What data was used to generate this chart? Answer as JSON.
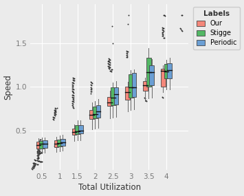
{
  "xlabel": "Total Utilization",
  "ylabel": "Speed",
  "xlim": [
    0.18,
    4.62
  ],
  "ylim": [
    0.05,
    1.95
  ],
  "yticks": [
    0.5,
    1.0,
    1.5
  ],
  "xticks": [
    0.5,
    1.0,
    1.5,
    2.0,
    2.5,
    3.0,
    3.5,
    4.0
  ],
  "background_color": "#EBEBEB",
  "grid_color": "#FFFFFF",
  "colors": {
    "Our": "#F4877A",
    "Stigge": "#53B865",
    "Periodic": "#6B9FD4"
  },
  "legend_title": "Labels",
  "legend_labels": [
    "Our",
    "Stigge",
    "Periodic"
  ],
  "groups": [
    0.5,
    1.0,
    1.5,
    2.0,
    2.5,
    3.0,
    3.5,
    4.0
  ],
  "box_width": 0.13,
  "offsets": [
    -0.09,
    0.0,
    0.09
  ],
  "boxes": {
    "Our": {
      "0.5": {
        "q1": 0.295,
        "med": 0.34,
        "q3": 0.375,
        "whislo": 0.24,
        "whishi": 0.415
      },
      "1.0": {
        "q1": 0.31,
        "med": 0.355,
        "q3": 0.39,
        "whislo": 0.26,
        "whishi": 0.43
      },
      "1.5": {
        "q1": 0.455,
        "med": 0.485,
        "q3": 0.525,
        "whislo": 0.385,
        "whishi": 0.575
      },
      "2.0": {
        "q1": 0.635,
        "med": 0.68,
        "q3": 0.735,
        "whislo": 0.52,
        "whishi": 0.82
      },
      "2.5": {
        "q1": 0.78,
        "med": 0.825,
        "q3": 0.885,
        "whislo": 0.64,
        "whishi": 0.96
      },
      "3.0": {
        "q1": 0.855,
        "med": 0.94,
        "q3": 1.0,
        "whislo": 0.72,
        "whishi": 1.06
      },
      "3.5": {
        "q1": 0.955,
        "med": 1.02,
        "q3": 1.07,
        "whislo": 0.84,
        "whishi": 1.105
      },
      "4.0": {
        "q1": 1.0,
        "med": 1.185,
        "q3": 1.21,
        "whislo": 0.94,
        "whishi": 1.25
      }
    },
    "Stigge": {
      "0.5": {
        "q1": 0.3,
        "med": 0.348,
        "q3": 0.385,
        "whislo": 0.245,
        "whishi": 0.42
      },
      "1.0": {
        "q1": 0.32,
        "med": 0.362,
        "q3": 0.4,
        "whislo": 0.268,
        "whishi": 0.445
      },
      "1.5": {
        "q1": 0.46,
        "med": 0.492,
        "q3": 0.565,
        "whislo": 0.39,
        "whishi": 0.615
      },
      "2.0": {
        "q1": 0.64,
        "med": 0.69,
        "q3": 0.775,
        "whislo": 0.525,
        "whishi": 0.84
      },
      "2.5": {
        "q1": 0.79,
        "med": 0.875,
        "q3": 0.995,
        "whislo": 0.65,
        "whishi": 1.05
      },
      "3.0": {
        "q1": 0.88,
        "med": 0.998,
        "q3": 1.145,
        "whislo": 0.74,
        "whishi": 1.195
      },
      "3.5": {
        "q1": 1.005,
        "med": 1.165,
        "q3": 1.335,
        "whislo": 0.87,
        "whishi": 1.44
      },
      "4.0": {
        "q1": 1.095,
        "med": 1.175,
        "q3": 1.265,
        "whislo": 0.97,
        "whishi": 1.31
      }
    },
    "Periodic": {
      "0.5": {
        "q1": 0.305,
        "med": 0.352,
        "q3": 0.388,
        "whislo": 0.248,
        "whishi": 0.425
      },
      "1.0": {
        "q1": 0.325,
        "med": 0.368,
        "q3": 0.408,
        "whislo": 0.27,
        "whishi": 0.45
      },
      "1.5": {
        "q1": 0.468,
        "med": 0.5,
        "q3": 0.56,
        "whislo": 0.392,
        "whishi": 0.62
      },
      "2.0": {
        "q1": 0.648,
        "med": 0.718,
        "q3": 0.795,
        "whislo": 0.53,
        "whishi": 0.862
      },
      "2.5": {
        "q1": 0.798,
        "med": 0.918,
        "q3": 0.998,
        "whislo": 0.655,
        "whishi": 1.07
      },
      "3.0": {
        "q1": 0.885,
        "med": 0.998,
        "q3": 1.158,
        "whislo": 0.745,
        "whishi": 1.2
      },
      "3.5": {
        "q1": 1.018,
        "med": 1.168,
        "q3": 1.248,
        "whislo": 0.882,
        "whishi": 1.315
      },
      "4.0": {
        "q1": 1.098,
        "med": 1.195,
        "q3": 1.268,
        "whislo": 0.975,
        "whishi": 1.335
      }
    }
  },
  "fliers": {
    "0.5_scatter": [
      [
        0.42,
        0.385
      ],
      [
        0.44,
        0.395
      ],
      [
        0.46,
        0.4
      ],
      [
        0.42,
        0.355
      ],
      [
        0.44,
        0.36
      ],
      [
        0.36,
        0.31
      ],
      [
        0.38,
        0.315
      ],
      [
        0.4,
        0.32
      ],
      [
        0.42,
        0.318
      ],
      [
        0.44,
        0.312
      ],
      [
        0.36,
        0.295
      ],
      [
        0.38,
        0.298
      ],
      [
        0.4,
        0.3
      ],
      [
        0.42,
        0.302
      ],
      [
        0.44,
        0.296
      ],
      [
        0.38,
        0.28
      ],
      [
        0.4,
        0.282
      ],
      [
        0.42,
        0.278
      ],
      [
        0.36,
        0.265
      ],
      [
        0.38,
        0.268
      ],
      [
        0.4,
        0.27
      ],
      [
        0.42,
        0.266
      ],
      [
        0.44,
        0.262
      ],
      [
        0.36,
        0.25
      ],
      [
        0.38,
        0.252
      ],
      [
        0.4,
        0.255
      ],
      [
        0.42,
        0.248
      ],
      [
        0.44,
        0.245
      ],
      [
        0.46,
        0.248
      ],
      [
        0.48,
        0.252
      ],
      [
        0.5,
        0.255
      ],
      [
        0.38,
        0.235
      ],
      [
        0.4,
        0.238
      ],
      [
        0.42,
        0.232
      ],
      [
        0.36,
        0.22
      ],
      [
        0.38,
        0.215
      ],
      [
        0.4,
        0.218
      ],
      [
        0.38,
        0.2
      ],
      [
        0.4,
        0.198
      ],
      [
        0.36,
        0.185
      ],
      [
        0.38,
        0.182
      ],
      [
        0.4,
        0.188
      ],
      [
        0.3,
        0.168
      ],
      [
        0.32,
        0.165
      ],
      [
        0.34,
        0.162
      ],
      [
        0.36,
        0.16
      ],
      [
        0.38,
        0.155
      ],
      [
        0.4,
        0.158
      ],
      [
        0.42,
        0.152
      ],
      [
        0.44,
        0.148
      ],
      [
        0.46,
        0.145
      ],
      [
        0.48,
        0.148
      ],
      [
        0.5,
        0.145
      ],
      [
        0.25,
        0.132
      ],
      [
        0.27,
        0.13
      ],
      [
        0.29,
        0.128
      ],
      [
        0.32,
        0.125
      ],
      [
        0.34,
        0.122
      ],
      [
        0.36,
        0.12
      ],
      [
        0.38,
        0.118
      ],
      [
        0.28,
        0.115
      ],
      [
        0.3,
        0.112
      ],
      [
        0.32,
        0.11
      ],
      [
        0.26,
        0.098
      ],
      [
        0.28,
        0.095
      ],
      [
        0.3,
        0.092
      ],
      [
        0.24,
        0.082
      ],
      [
        0.26,
        0.079
      ],
      [
        0.28,
        0.076
      ],
      [
        0.22,
        0.068
      ],
      [
        0.24,
        0.065
      ]
    ],
    "1.0_scatter": [
      [
        0.88,
        0.76
      ],
      [
        0.9,
        0.755
      ],
      [
        0.92,
        0.758
      ],
      [
        0.86,
        0.74
      ],
      [
        0.88,
        0.735
      ],
      [
        0.9,
        0.732
      ],
      [
        0.86,
        0.715
      ],
      [
        0.88,
        0.718
      ],
      [
        0.9,
        0.712
      ],
      [
        0.86,
        0.698
      ],
      [
        0.88,
        0.695
      ],
      [
        0.9,
        0.692
      ],
      [
        0.86,
        0.678
      ],
      [
        0.88,
        0.675
      ],
      [
        0.82,
        0.655
      ],
      [
        0.84,
        0.65
      ],
      [
        0.86,
        0.648
      ],
      [
        0.82,
        0.635
      ],
      [
        0.84,
        0.628
      ],
      [
        0.9,
        0.378
      ],
      [
        0.92,
        0.372
      ],
      [
        0.94,
        0.368
      ],
      [
        0.88,
        0.352
      ],
      [
        0.9,
        0.348
      ],
      [
        0.86,
        0.328
      ],
      [
        0.88,
        0.322
      ]
    ],
    "1.5_scatter": [
      [
        1.38,
        1.108
      ],
      [
        1.4,
        1.102
      ],
      [
        1.42,
        1.098
      ],
      [
        1.38,
        1.082
      ],
      [
        1.4,
        1.075
      ],
      [
        1.42,
        1.072
      ],
      [
        1.36,
        1.052
      ],
      [
        1.38,
        1.048
      ],
      [
        1.4,
        1.045
      ],
      [
        1.36,
        1.028
      ],
      [
        1.38,
        1.022
      ],
      [
        1.36,
        1.005
      ],
      [
        1.38,
        1.0
      ],
      [
        1.36,
        0.982
      ],
      [
        1.38,
        0.978
      ],
      [
        1.4,
        0.975
      ],
      [
        1.36,
        0.958
      ],
      [
        1.38,
        0.952
      ],
      [
        1.38,
        0.938
      ],
      [
        1.4,
        0.932
      ],
      [
        1.36,
        0.912
      ],
      [
        1.38,
        0.908
      ],
      [
        1.4,
        0.905
      ],
      [
        1.36,
        0.888
      ],
      [
        1.38,
        0.882
      ],
      [
        1.4,
        0.878
      ],
      [
        1.38,
        0.862
      ],
      [
        1.4,
        0.858
      ],
      [
        1.36,
        0.838
      ],
      [
        1.38,
        0.835
      ],
      [
        1.4,
        0.832
      ],
      [
        1.36,
        0.812
      ],
      [
        1.38,
        0.808
      ],
      [
        1.36,
        0.79
      ],
      [
        1.38,
        0.785
      ],
      [
        1.38,
        0.765
      ],
      [
        1.4,
        0.76
      ]
    ],
    "2.0_scatter": [
      [
        1.88,
        1.055
      ],
      [
        1.9,
        1.048
      ],
      [
        1.92,
        1.042
      ],
      [
        1.88,
        1.025
      ],
      [
        1.9,
        1.018
      ],
      [
        1.88,
        0.998
      ],
      [
        1.9,
        0.992
      ],
      [
        1.88,
        0.975
      ],
      [
        1.9,
        0.97
      ],
      [
        1.88,
        0.952
      ],
      [
        1.9,
        0.945
      ],
      [
        1.88,
        0.928
      ]
    ],
    "2.5_scatter": [
      [
        2.38,
        1.322
      ],
      [
        2.4,
        1.318
      ],
      [
        2.42,
        1.312
      ],
      [
        2.36,
        1.298
      ],
      [
        2.38,
        1.292
      ],
      [
        2.4,
        1.288
      ],
      [
        2.42,
        1.282
      ],
      [
        2.36,
        1.268
      ],
      [
        2.38,
        1.262
      ],
      [
        2.4,
        1.258
      ],
      [
        2.42,
        1.252
      ],
      [
        2.36,
        1.238
      ],
      [
        2.38,
        1.232
      ],
      [
        2.4,
        1.228
      ],
      [
        2.42,
        1.222
      ],
      [
        2.38,
        1.212
      ],
      [
        2.4,
        1.208
      ],
      [
        2.46,
        1.202
      ],
      [
        2.48,
        1.198
      ],
      [
        2.42,
        1.188
      ],
      [
        2.44,
        1.182
      ],
      [
        2.46,
        1.178
      ],
      [
        2.38,
        1.302
      ],
      [
        2.5,
        1.498
      ],
      [
        2.48,
        1.692
      ]
    ],
    "3.0_scatter": [
      [
        2.88,
        1.415
      ],
      [
        2.9,
        1.408
      ],
      [
        2.92,
        1.402
      ],
      [
        2.88,
        1.388
      ],
      [
        2.9,
        1.382
      ],
      [
        2.88,
        1.365
      ],
      [
        2.9,
        1.358
      ],
      [
        2.88,
        1.342
      ],
      [
        2.9,
        1.338
      ],
      [
        2.92,
        1.722
      ],
      [
        2.94,
        1.818
      ]
    ],
    "3.5_scatter": [
      [
        3.38,
        0.878
      ],
      [
        3.4,
        0.87
      ],
      [
        3.42,
        0.848
      ],
      [
        3.44,
        0.84
      ]
    ],
    "4.0_scatter": [
      [
        3.88,
        1.678
      ],
      [
        3.9,
        1.672
      ],
      [
        3.92,
        1.668
      ],
      [
        3.88,
        1.652
      ],
      [
        3.9,
        1.645
      ],
      [
        3.92,
        1.64
      ],
      [
        3.88,
        1.628
      ],
      [
        3.9,
        1.622
      ],
      [
        3.88,
        1.608
      ],
      [
        3.9,
        1.602
      ],
      [
        3.88,
        1.588
      ],
      [
        3.9,
        1.582
      ],
      [
        3.92,
        1.562
      ],
      [
        3.94,
        1.558
      ],
      [
        3.92,
        1.822
      ],
      [
        3.94,
        1.818
      ],
      [
        3.96,
        1.812
      ],
      [
        3.88,
        0.888
      ],
      [
        3.9,
        0.878
      ],
      [
        4.38,
        1.672
      ],
      [
        4.4,
        1.665
      ],
      [
        4.42,
        1.648
      ],
      [
        4.44,
        1.642
      ],
      [
        4.42,
        1.822
      ],
      [
        4.44,
        1.818
      ]
    ]
  }
}
